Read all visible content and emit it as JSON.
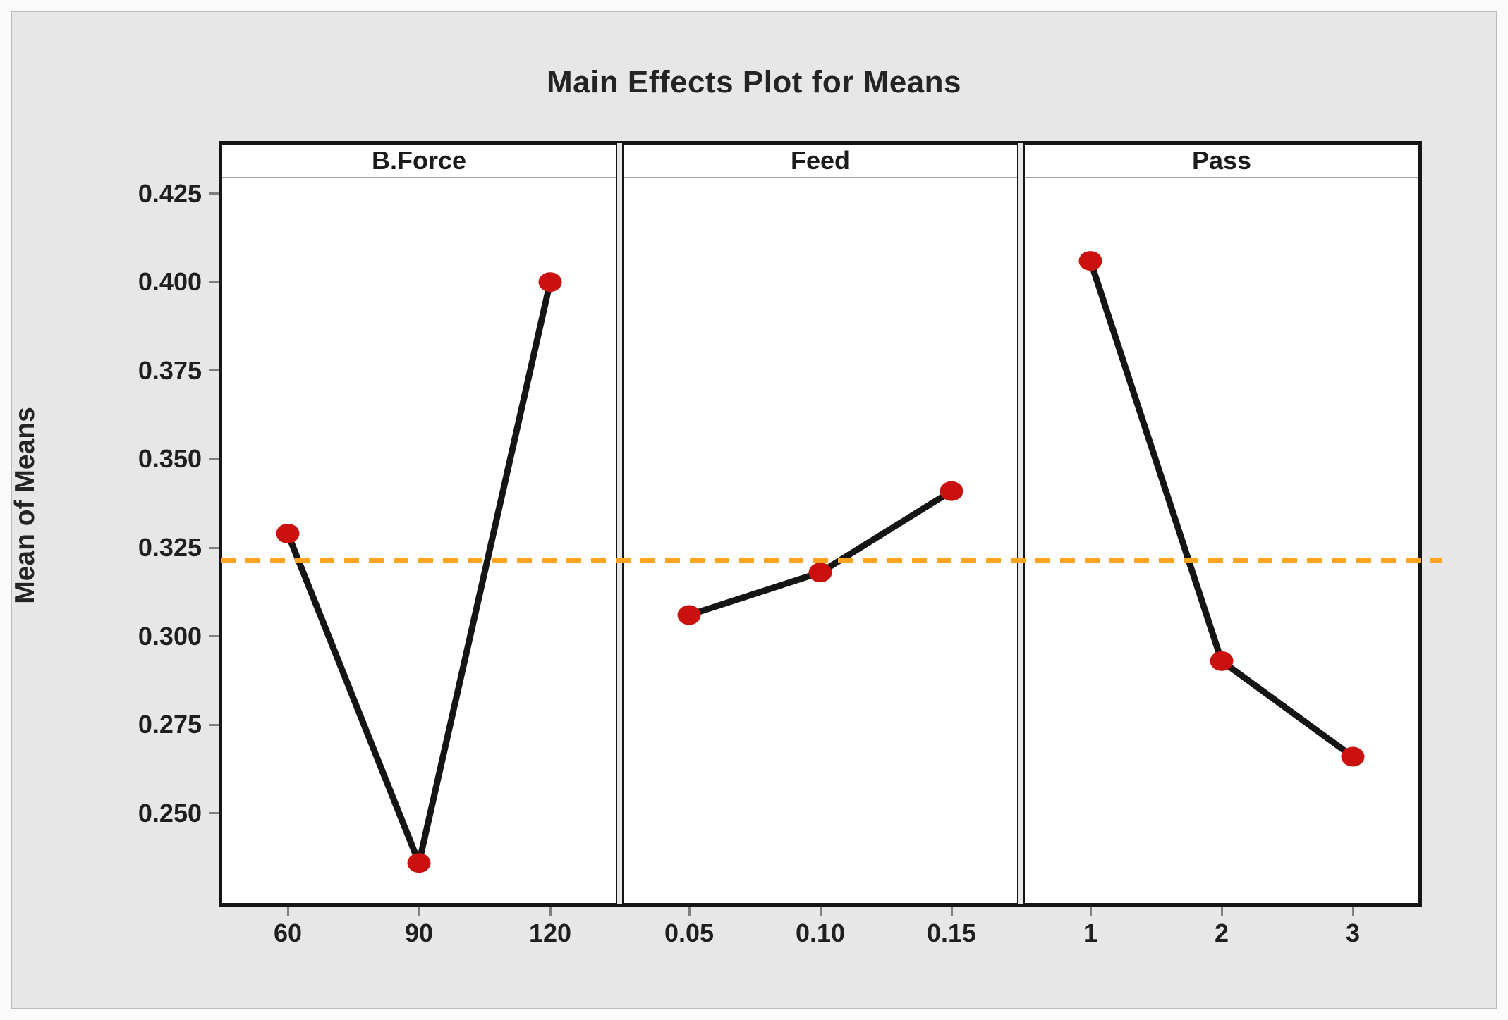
{
  "title": "Main Effects Plot for Means",
  "y_axis": {
    "label": "Mean of Means",
    "ticks": [
      {
        "label": "0.425",
        "value": 0.425
      },
      {
        "label": "0.400",
        "value": 0.4
      },
      {
        "label": "0.375",
        "value": 0.375
      },
      {
        "label": "0.350",
        "value": 0.35
      },
      {
        "label": "0.325",
        "value": 0.325
      },
      {
        "label": "0.300",
        "value": 0.3
      },
      {
        "label": "0.275",
        "value": 0.275
      },
      {
        "label": "0.250",
        "value": 0.25
      }
    ],
    "range_top": 0.4293,
    "range_bottom": 0.2247
  },
  "reference_line": {
    "value": 0.3215,
    "color": "#FFA41F",
    "style": "dashed"
  },
  "panels": [
    {
      "header": "B.Force",
      "x_ticks": [
        "60",
        "90",
        "120"
      ],
      "values": [
        0.329,
        0.236,
        0.4
      ]
    },
    {
      "header": "Feed",
      "x_ticks": [
        "0.05",
        "0.10",
        "0.15"
      ],
      "values": [
        0.306,
        0.318,
        0.341
      ]
    },
    {
      "header": "Pass",
      "x_ticks": [
        "1",
        "2",
        "3"
      ],
      "values": [
        0.406,
        0.293,
        0.266
      ]
    }
  ],
  "style_colors": {
    "marker": "#CB1010",
    "line": "#151515",
    "reference": "#FFA41F",
    "background": "#E7E7E7"
  },
  "chart_data": {
    "type": "line",
    "title": "Main Effects Plot for Means",
    "ylabel": "Mean of Means",
    "ylim": [
      0.2247,
      0.4293
    ],
    "yticks": [
      0.425,
      0.4,
      0.375,
      0.35,
      0.325,
      0.3,
      0.275,
      0.25
    ],
    "grid": false,
    "legend": "none",
    "reference_line": 0.3215,
    "panels": [
      {
        "factor": "B.Force",
        "x": [
          60,
          90,
          120
        ],
        "means": [
          0.329,
          0.236,
          0.4
        ]
      },
      {
        "factor": "Feed",
        "x": [
          0.05,
          0.1,
          0.15
        ],
        "means": [
          0.306,
          0.318,
          0.341
        ]
      },
      {
        "factor": "Pass",
        "x": [
          1,
          2,
          3
        ],
        "means": [
          0.406,
          0.293,
          0.266
        ]
      }
    ]
  }
}
